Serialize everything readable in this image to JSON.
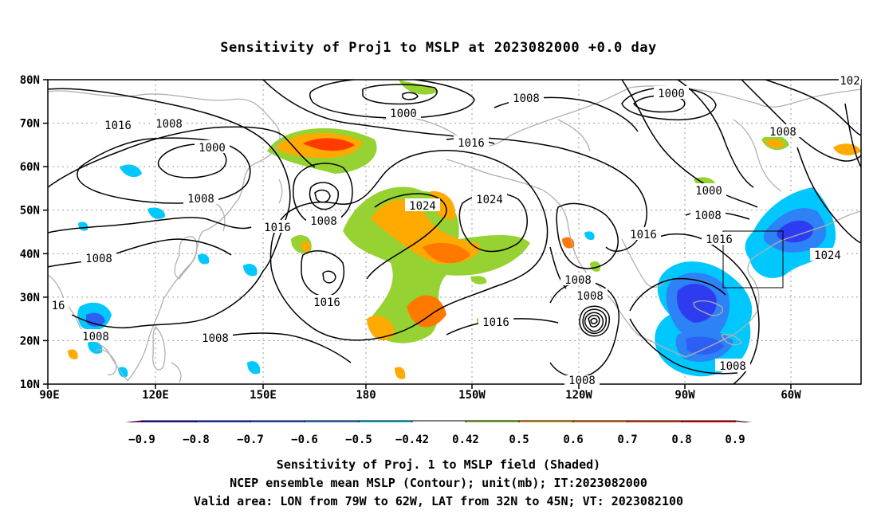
{
  "title": "Sensitivity of Proj1 to MSLP at 2023082000 +0.0 day",
  "lat_labels": [
    "80N",
    "70N",
    "60N",
    "50N",
    "40N",
    "30N",
    "20N",
    "10N"
  ],
  "lon_labels": [
    "90E",
    "120E",
    "150E",
    "180",
    "150W",
    "120W",
    "90W",
    "60W"
  ],
  "contour_labels": [
    {
      "text": "1016"
    },
    {
      "text": "1008"
    },
    {
      "text": "1000"
    },
    {
      "text": "1008"
    },
    {
      "text": "1008"
    },
    {
      "text": "1016"
    },
    {
      "text": "1008"
    },
    {
      "text": "16"
    },
    {
      "text": "1008"
    },
    {
      "text": "1008"
    },
    {
      "text": "1016"
    },
    {
      "text": "1000"
    },
    {
      "text": "1008"
    },
    {
      "text": "1016"
    },
    {
      "text": "1024"
    },
    {
      "text": "1024"
    },
    {
      "text": "1016"
    },
    {
      "text": "1016"
    },
    {
      "text": "1008"
    },
    {
      "text": "1008"
    },
    {
      "text": "1008"
    },
    {
      "text": "1000"
    },
    {
      "text": "1008"
    },
    {
      "text": "1000"
    },
    {
      "text": "1008"
    },
    {
      "text": "1016"
    },
    {
      "text": "1024"
    },
    {
      "text": "1008"
    },
    {
      "text": "102"
    }
  ],
  "colorbar": {
    "labels": [
      "−0.9",
      "−0.8",
      "−0.7",
      "−0.6",
      "−0.5",
      "−0.42",
      "0.42",
      "0.5",
      "0.6",
      "0.7",
      "0.8",
      "0.9"
    ],
    "colors": [
      "#1e1ecd",
      "#2d3cf0",
      "#2d5ff5",
      "#2d82f5",
      "#00c8ff",
      "#ffffff",
      "#96d232",
      "#ffaa00",
      "#ff7800",
      "#ff3c00",
      "#ff0000"
    ],
    "low_end_color": "#c800c8",
    "high_end_color": "#ff96c8"
  },
  "captions": [
    "Sensitivity of Proj. 1 to MSLP field (Shaded)",
    "NCEP ensemble mean MSLP (Contour); unit(mb); IT:2023082000",
    "Valid area: LON from 79W to 62W, LAT from 32N to 45N; VT: 2023082100"
  ]
}
